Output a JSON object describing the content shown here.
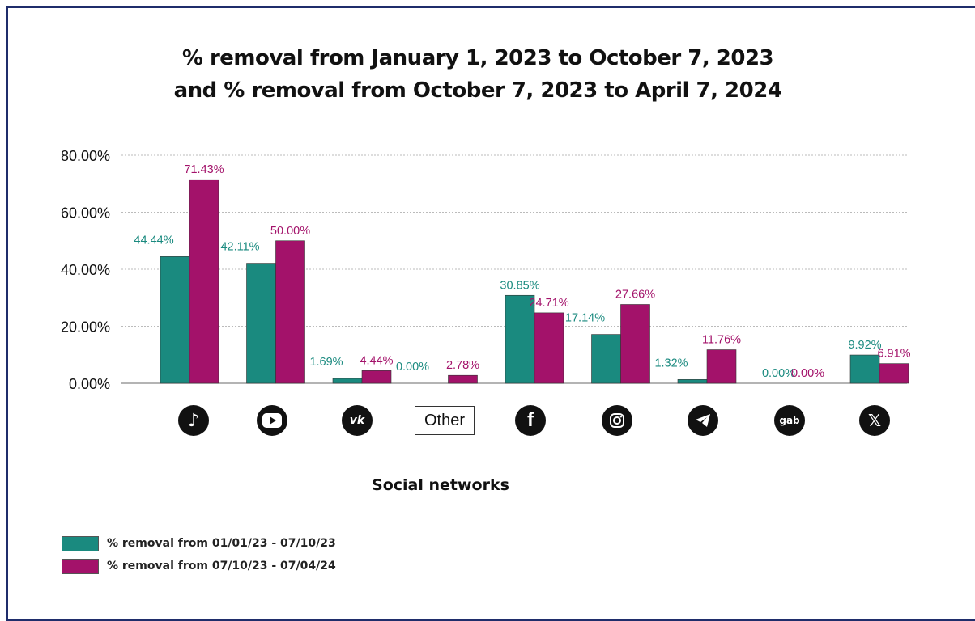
{
  "colors": {
    "series1": "#1a8a7f",
    "series2": "#a3126a",
    "frame": "#1f2d6b",
    "grid": "#bbbbbb"
  },
  "chart_data": {
    "type": "bar",
    "title": "% removal from January 1, 2023 to October 7, 2023 and % removal from October 7, 2023 to April 7, 2024",
    "title_lines": [
      "% removal from January 1, 2023 to October 7, 2023",
      "and % removal from October 7, 2023 to April 7, 2024"
    ],
    "xlabel": "Social networks",
    "ylabel": "",
    "ylim": [
      0,
      80
    ],
    "yticks": [
      0,
      20,
      40,
      60,
      80
    ],
    "ytick_labels": [
      "0.00%",
      "20.00%",
      "40.00%",
      "60.00%",
      "80.00%"
    ],
    "grid": true,
    "legend_position": "bottom-left",
    "categories": [
      "TikTok",
      "YouTube",
      "VK",
      "Other",
      "Facebook",
      "Instagram",
      "Telegram",
      "Gab",
      "X"
    ],
    "category_icons": [
      "tiktok-icon",
      "youtube-icon",
      "vk-icon",
      "other-label",
      "facebook-icon",
      "instagram-icon",
      "telegram-icon",
      "gab-icon",
      "x-icon"
    ],
    "other_label": "Other",
    "gab_label": "gab",
    "series": [
      {
        "name": "% removal from 01/01/23 - 07/10/23",
        "color": "#1a8a7f",
        "values": [
          44.44,
          42.11,
          1.69,
          0.0,
          30.85,
          17.14,
          1.32,
          0.0,
          9.92
        ],
        "labels": [
          "44.44%",
          "42.11%",
          "1.69%",
          "0.00%",
          "30.85%",
          "17.14%",
          "1.32%",
          "0.00%",
          "9.92%"
        ]
      },
      {
        "name": "% removal from 07/10/23 - 07/04/24",
        "color": "#a3126a",
        "values": [
          71.43,
          50.0,
          4.44,
          2.78,
          24.71,
          27.66,
          11.76,
          0.0,
          6.91
        ],
        "labels": [
          "71.43%",
          "50.00%",
          "4.44%",
          "2.78%",
          "24.71%",
          "27.66%",
          "11.76%",
          "0.00%",
          "6.91%"
        ]
      }
    ]
  }
}
